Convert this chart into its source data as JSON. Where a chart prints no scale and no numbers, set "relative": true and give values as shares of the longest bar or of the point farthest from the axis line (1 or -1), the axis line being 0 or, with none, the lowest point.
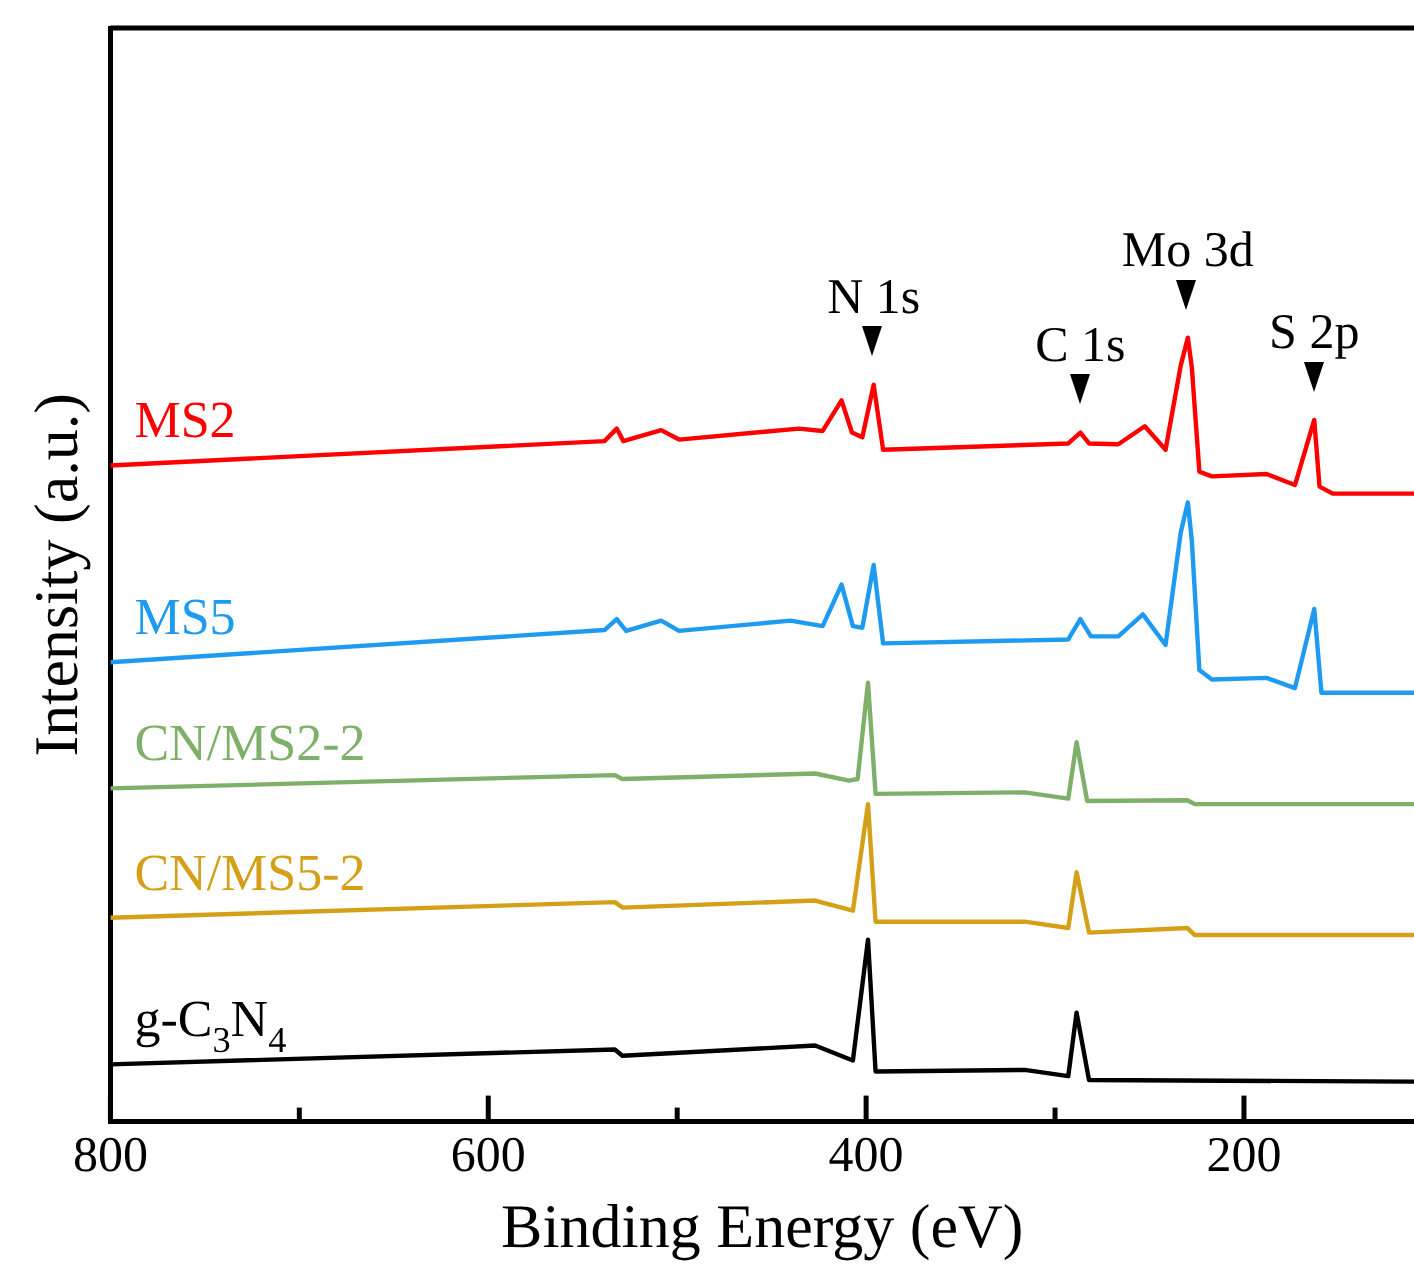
{
  "chart_data": {
    "type": "line",
    "xlabel": "Binding Energy (eV)",
    "ylabel": "Intensity (a.u.)",
    "relative": true,
    "legend": false,
    "grid": false,
    "tick_labels": "x",
    "marker": "none",
    "line_style": "solid",
    "xlim": [
      800,
      110
    ],
    "xticks": [
      800,
      {
        "value": 700,
        "label": null
      },
      600,
      {
        "value": 500,
        "label": null
      },
      400,
      {
        "value": 300,
        "label": null
      },
      200
    ],
    "annotations": [
      {
        "text": "N 1s",
        "x": 396,
        "y": 0.94
      },
      {
        "text": "C 1s",
        "x": 286.6,
        "y": 0.879
      },
      {
        "text": "Mo 3d",
        "x": 229.7,
        "y": 1.0
      },
      {
        "text": "S 2p",
        "x": 162.8,
        "y": 0.895
      }
    ],
    "series": [
      {
        "name": "MS2",
        "color": "#ff0000",
        "x": [
          800,
          538.5,
          532,
          528.5,
          508.5,
          499,
          435.6,
          423,
          413,
          407.5,
          402,
          396,
          391,
          293,
          286.6,
          282,
          266.5,
          252.5,
          241.5,
          233.5,
          229.7,
          227.6,
          223.6,
          217,
          188,
          173,
          162.8,
          160,
          153,
          110
        ],
        "values": [
          0.837,
          0.868,
          0.884,
          0.868,
          0.882,
          0.87,
          0.884,
          0.881,
          0.92,
          0.879,
          0.873,
          0.94,
          0.857,
          0.865,
          0.879,
          0.865,
          0.864,
          0.887,
          0.857,
          0.964,
          1.0,
          0.962,
          0.829,
          0.823,
          0.826,
          0.812,
          0.895,
          0.81,
          0.801,
          0.801
        ]
      },
      {
        "name": "MS5",
        "color": "#1e9bf0",
        "x": [
          800,
          538.5,
          532,
          527,
          508.5,
          499,
          440,
          423,
          413,
          407,
          402,
          396,
          391,
          293,
          286.6,
          281,
          266.5,
          253.5,
          241.5,
          233.5,
          229.7,
          227.6,
          223.6,
          217,
          188,
          173,
          162.8,
          159,
          110
        ],
        "values": [
          0.586,
          0.627,
          0.641,
          0.626,
          0.639,
          0.626,
          0.639,
          0.632,
          0.685,
          0.632,
          0.63,
          0.71,
          0.61,
          0.615,
          0.641,
          0.619,
          0.619,
          0.647,
          0.608,
          0.751,
          0.79,
          0.741,
          0.576,
          0.564,
          0.566,
          0.553,
          0.654,
          0.547,
          0.547
        ]
      },
      {
        "name": "CN/MS2-2",
        "color": "#7fb06a",
        "x": [
          800,
          533,
          529,
          427,
          409,
          404.5,
          399,
          395,
          316,
          293,
          288.6,
          283,
          230,
          226,
          110
        ],
        "values": [
          0.425,
          0.442,
          0.437,
          0.444,
          0.435,
          0.437,
          0.56,
          0.418,
          0.42,
          0.412,
          0.484,
          0.409,
          0.41,
          0.405,
          0.405
        ]
      },
      {
        "name": "CN/MS5-2",
        "color": "#d4a017",
        "x": [
          800,
          533,
          529,
          427,
          407,
          399,
          395,
          316,
          293,
          288.6,
          282,
          230,
          226,
          110
        ],
        "values": [
          0.26,
          0.28,
          0.273,
          0.282,
          0.269,
          0.405,
          0.255,
          0.255,
          0.247,
          0.318,
          0.241,
          0.247,
          0.238,
          0.238
        ]
      },
      {
        "name": "g-C$_{3}$N$_{4}$",
        "color": "#000000",
        "x": [
          800,
          533,
          529,
          427,
          407,
          399,
          395,
          316,
          293,
          288.6,
          282,
          110
        ],
        "values": [
          0.073,
          0.092,
          0.084,
          0.097,
          0.078,
          0.232,
          0.064,
          0.066,
          0.058,
          0.139,
          0.053,
          0.051
        ]
      }
    ]
  }
}
